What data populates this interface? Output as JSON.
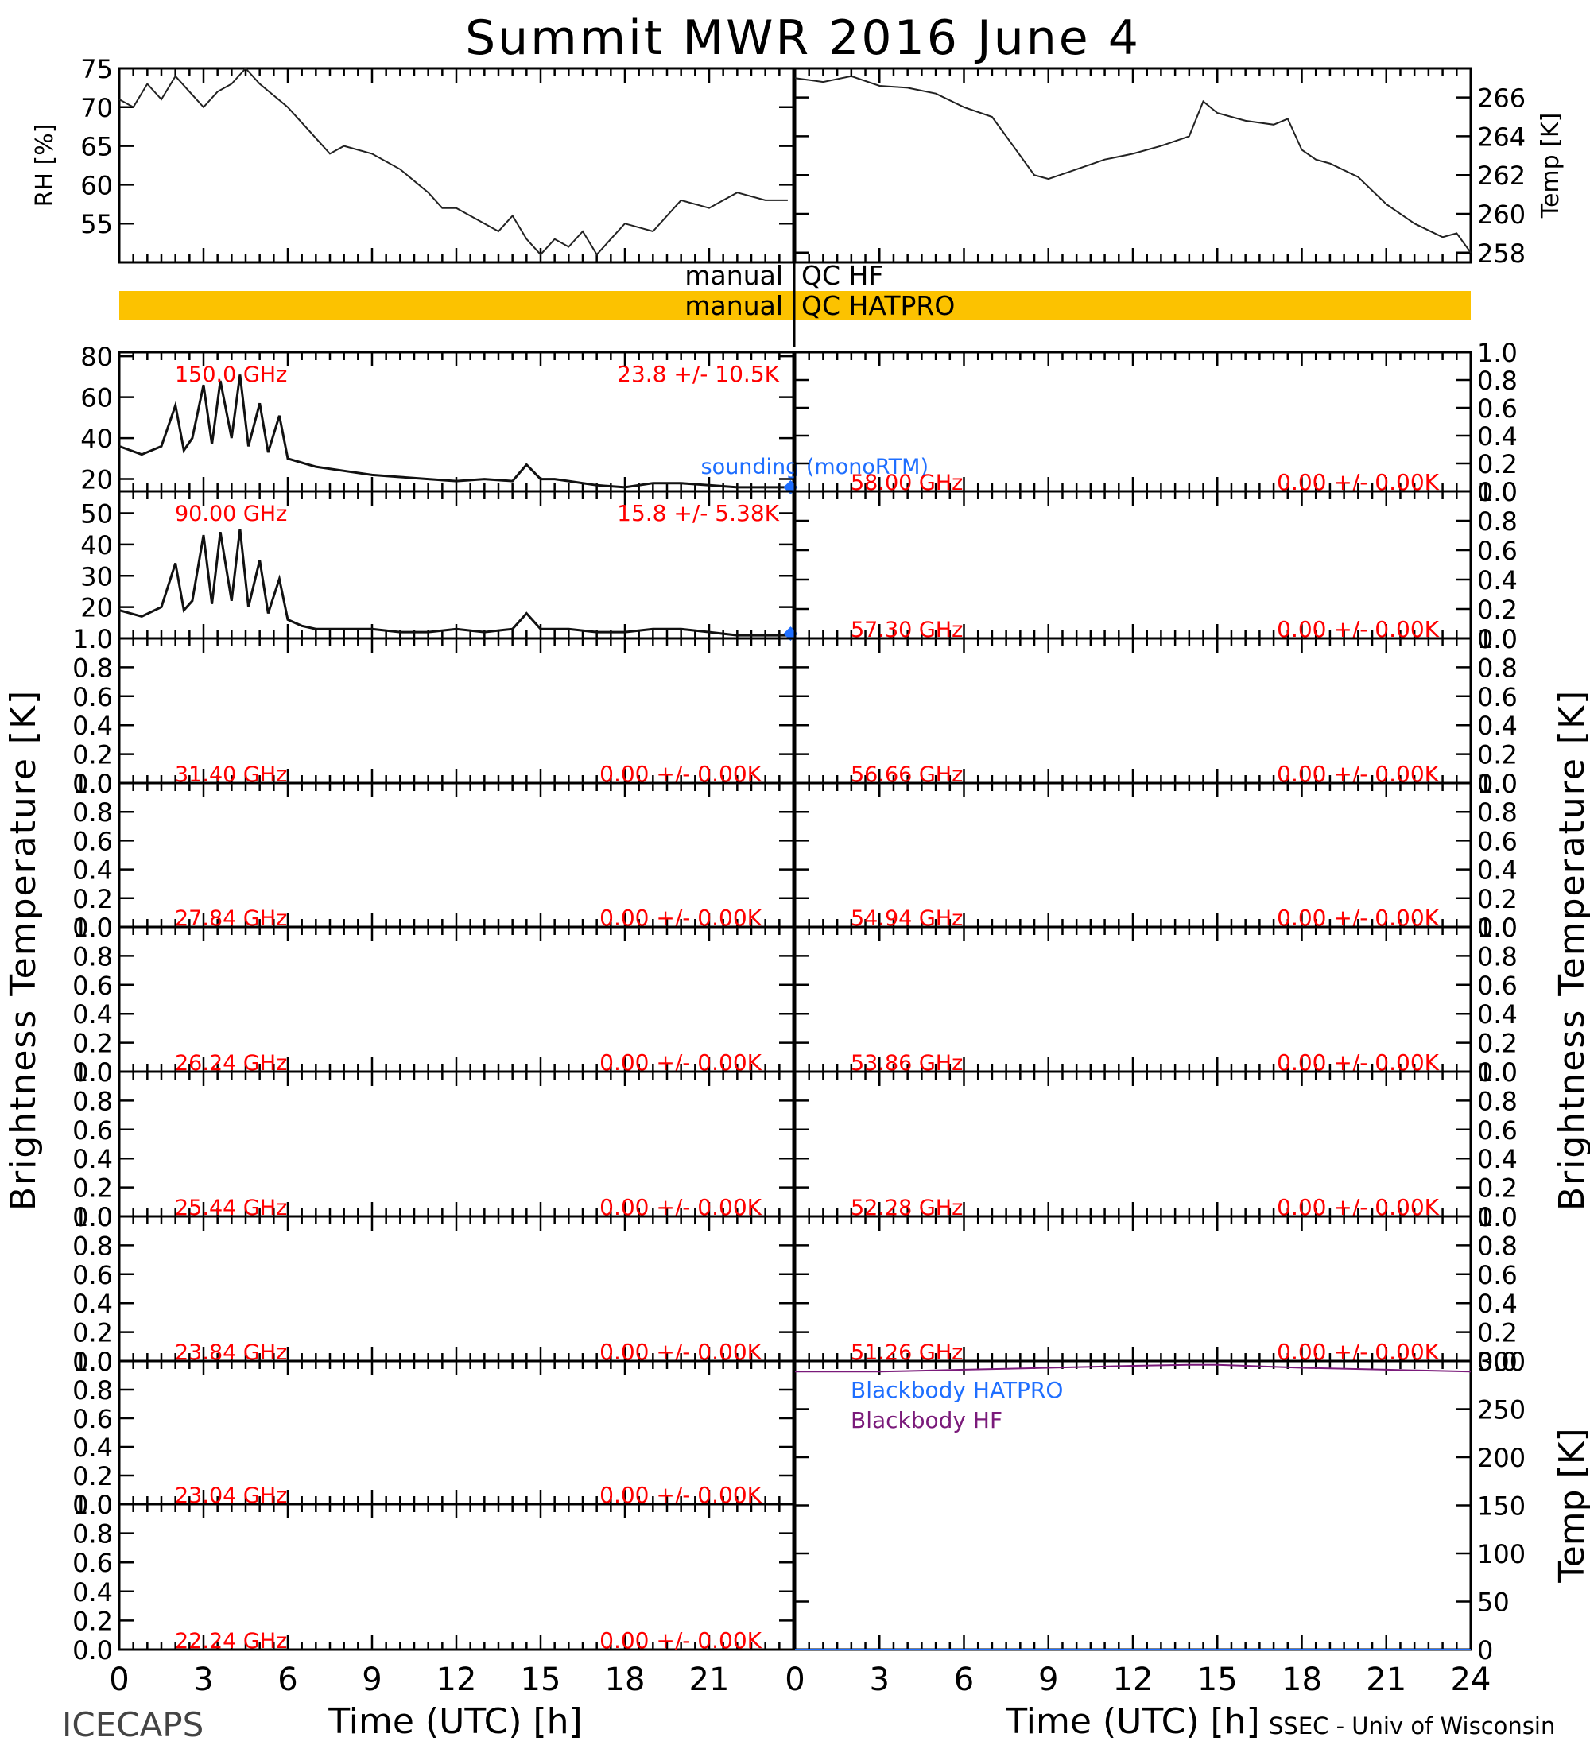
{
  "title": "Summit MWR 2016 June  4",
  "footer_left": "ICECAPS",
  "footer_right": "SSEC - Univ of Wisconsin",
  "left_ylabel": "Brightness Temperature [K]",
  "right_ylabel": "Brightness Temperature [K]",
  "x_axis": {
    "label": "Time (UTC) [h]",
    "min": 0,
    "max": 24,
    "left_ticks": [
      "0",
      "3",
      "6",
      "9",
      "12",
      "15",
      "18",
      "21"
    ],
    "right_ticks": [
      "0",
      "3",
      "6",
      "9",
      "12",
      "15",
      "18",
      "21",
      "24"
    ]
  },
  "colors": {
    "red": "#ff0000",
    "blue": "#1e6eff",
    "purple": "#7a1a7a",
    "qc_bar": "#fcc200"
  },
  "qc": {
    "left_hf": "manual",
    "right_hf": "QC HF",
    "left_hatpro": "manual",
    "right_hatpro": "QC HATPRO"
  },
  "chart_data": [
    {
      "id": "rh",
      "type": "line",
      "ylabel": "RH [%]",
      "ylim": [
        50,
        75
      ],
      "yticks": [
        "55",
        "60",
        "65",
        "70",
        "75"
      ],
      "x": [
        0,
        0.5,
        1,
        1.5,
        2,
        2.5,
        3,
        3.5,
        4,
        4.5,
        5,
        6,
        7,
        7.5,
        8,
        9,
        10,
        11,
        11.5,
        12,
        13,
        13.5,
        14,
        14.5,
        15,
        15.5,
        16,
        16.5,
        17,
        17.5,
        18,
        19,
        20,
        21,
        22,
        23,
        23.8
      ],
      "values": [
        71,
        70,
        73,
        71,
        74,
        72,
        70,
        72,
        73,
        75,
        73,
        70,
        66,
        64,
        65,
        64,
        62,
        59,
        57,
        57,
        55,
        54,
        56,
        53,
        51,
        53,
        52,
        54,
        51,
        53,
        55,
        54,
        58,
        57,
        59,
        58,
        58
      ]
    },
    {
      "id": "temp",
      "type": "line",
      "ylabel": "Temp [K]",
      "ylim": [
        257.5,
        267.5
      ],
      "yticks": [
        "258",
        "260",
        "262",
        "264",
        "266"
      ],
      "x": [
        0,
        1,
        2,
        3,
        4,
        5,
        6,
        7,
        8,
        8.5,
        9,
        10,
        11,
        12,
        13,
        14,
        14.5,
        15,
        15.5,
        16,
        17,
        17.5,
        18,
        18.5,
        19,
        20,
        21,
        22,
        23,
        23.5,
        24
      ],
      "values": [
        267,
        266.8,
        267.1,
        266.6,
        266.5,
        266.2,
        265.5,
        265,
        263,
        262,
        261.8,
        262.3,
        262.8,
        263.1,
        263.5,
        264,
        265.8,
        265.2,
        265,
        264.8,
        264.6,
        264.9,
        263.3,
        262.8,
        262.6,
        261.9,
        260.5,
        259.5,
        258.8,
        259,
        258
      ]
    },
    {
      "id": "l150",
      "type": "line",
      "freq": "150.0 GHz",
      "stat": "23.8 +/-  10.5K",
      "ylim": [
        14,
        82
      ],
      "yticks": [
        "20",
        "40",
        "60",
        "80"
      ],
      "x": [
        0,
        0.8,
        1.5,
        2,
        2.3,
        2.6,
        3,
        3.3,
        3.6,
        4,
        4.3,
        4.6,
        5,
        5.3,
        5.7,
        6,
        6.5,
        7,
        8,
        9,
        10,
        11,
        12,
        13,
        14,
        14.5,
        15,
        15.5,
        16,
        17,
        18,
        19,
        20,
        21,
        22,
        23,
        23.8
      ],
      "values": [
        36,
        32,
        36,
        56,
        34,
        40,
        66,
        37,
        68,
        40,
        71,
        36,
        57,
        33,
        51,
        30,
        28,
        26,
        24,
        22,
        21,
        20,
        19,
        20,
        19,
        27,
        20,
        20,
        19,
        17,
        16,
        18,
        18,
        17,
        16,
        16,
        16
      ],
      "sounding_label": "sounding (monoRTM)",
      "sounding_point": [
        23.9,
        16
      ]
    },
    {
      "id": "l90",
      "type": "line",
      "freq": "90.00 GHz",
      "stat": "15.8 +/-  5.38K",
      "ylim": [
        10,
        57
      ],
      "yticks": [
        "20",
        "30",
        "40",
        "50"
      ],
      "x": [
        0,
        0.8,
        1.5,
        2,
        2.3,
        2.6,
        3,
        3.3,
        3.6,
        4,
        4.3,
        4.6,
        5,
        5.3,
        5.7,
        6,
        6.5,
        7,
        8,
        9,
        10,
        11,
        12,
        13,
        14,
        14.5,
        15,
        15.5,
        16,
        17,
        18,
        19,
        20,
        21,
        22,
        23,
        23.8
      ],
      "values": [
        19,
        17,
        20,
        34,
        19,
        22,
        43,
        21,
        44,
        22,
        45,
        20,
        35,
        18,
        29,
        16,
        14,
        13,
        13,
        13,
        12,
        12,
        13,
        12,
        13,
        18,
        13,
        13,
        13,
        12,
        12,
        13,
        13,
        12,
        11,
        11,
        11
      ],
      "sounding_point": [
        23.9,
        11.5
      ]
    },
    {
      "id": "l3140",
      "freq": "31.40 GHz",
      "stat": "0.00 +/-  0.00K"
    },
    {
      "id": "l2784",
      "freq": "27.84 GHz",
      "stat": "0.00 +/-  0.00K"
    },
    {
      "id": "l2624",
      "freq": "26.24 GHz",
      "stat": "0.00 +/-  0.00K"
    },
    {
      "id": "l2544",
      "freq": "25.44 GHz",
      "stat": "0.00 +/-  0.00K"
    },
    {
      "id": "l2384",
      "freq": "23.84 GHz",
      "stat": "0.00 +/-  0.00K"
    },
    {
      "id": "l2304",
      "freq": "23.04 GHz",
      "stat": "0.00 +/-  0.00K"
    },
    {
      "id": "l2224",
      "freq": "22.24 GHz",
      "stat": "0.00 +/-  0.00K"
    },
    {
      "id": "r5800",
      "freq": "58.00 GHz",
      "stat": "0.00 +/-  0.00K"
    },
    {
      "id": "r5730",
      "freq": "57.30 GHz",
      "stat": "0.00 +/-  0.00K"
    },
    {
      "id": "r5666",
      "freq": "56.66 GHz",
      "stat": "0.00 +/-  0.00K"
    },
    {
      "id": "r5494",
      "freq": "54.94 GHz",
      "stat": "0.00 +/-  0.00K"
    },
    {
      "id": "r5386",
      "freq": "53.86 GHz",
      "stat": "0.00 +/-  0.00K"
    },
    {
      "id": "r5228",
      "freq": "52.28 GHz",
      "stat": "0.00 +/-  0.00K"
    },
    {
      "id": "r5126",
      "freq": "51.26 GHz",
      "stat": "0.00 +/-  0.00K"
    },
    {
      "id": "bb",
      "type": "line",
      "ylabel": "Temp [K]",
      "ylim": [
        0,
        300
      ],
      "yticks": [
        "0",
        "50",
        "100",
        "150",
        "200",
        "250",
        "300"
      ],
      "series": [
        {
          "name": "Blackbody HATPRO",
          "x": [
            0,
            24
          ],
          "values": [
            0,
            0
          ]
        },
        {
          "name": "Blackbody HF",
          "x": [
            0,
            3,
            6,
            9,
            12,
            14,
            15,
            16,
            18,
            21,
            24
          ],
          "values": [
            289,
            289,
            291,
            293,
            295,
            296,
            296,
            295,
            293,
            291,
            289
          ]
        }
      ]
    }
  ],
  "empty_panel_ticks": [
    "0.0",
    "0.2",
    "0.4",
    "0.6",
    "0.8",
    "1.0"
  ]
}
